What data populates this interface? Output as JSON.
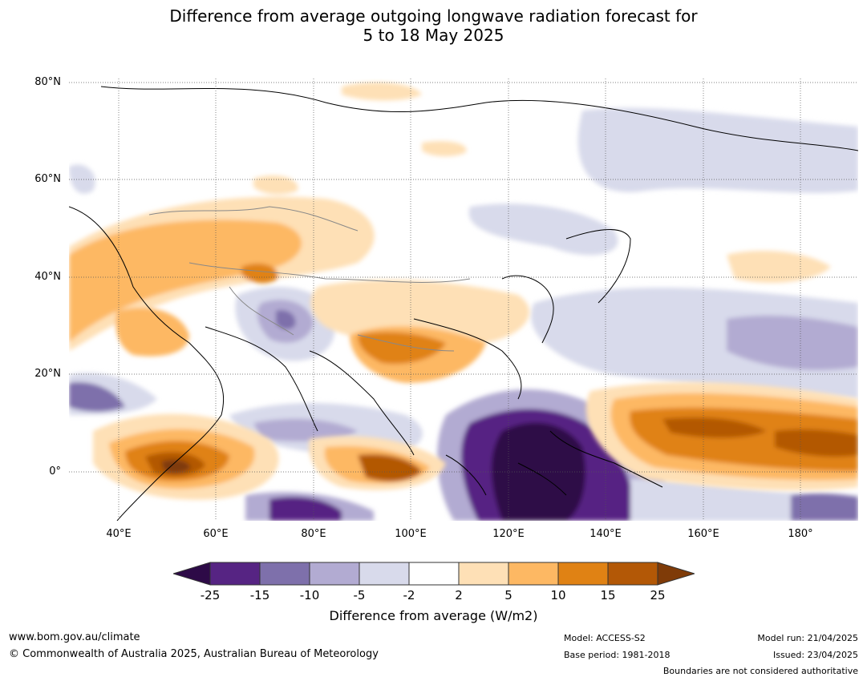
{
  "title_line1": "Difference from average outgoing longwave radiation forecast for",
  "title_line2": "5 to 18 May 2025",
  "lat_labels": [
    "80°N",
    "60°N",
    "40°N",
    "20°N",
    "0°"
  ],
  "lon_labels": [
    "40°E",
    "60°E",
    "80°E",
    "100°E",
    "120°E",
    "140°E",
    "160°E",
    "180°"
  ],
  "colorbar": {
    "ticks": [
      "-25",
      "-15",
      "-10",
      "-5",
      "-2",
      "2",
      "5",
      "10",
      "15",
      "25"
    ],
    "colors": [
      "#2d0a47",
      "#562483",
      "#7e70ab",
      "#b2abd2",
      "#d8daeb",
      "#ffffff",
      "#fee0b6",
      "#fdb863",
      "#e08214",
      "#b35806",
      "#7f3b08"
    ],
    "label": "Difference from average (W/m2)"
  },
  "footer": {
    "url": "www.bom.gov.au/climate",
    "copyright": "© Commonwealth of Australia 2025, Australian Bureau of Meteorology",
    "model": "Model: ACCESS-S2",
    "base_period": "Base period: 1981-2018",
    "model_run": "Model run: 21/04/2025",
    "issued": "Issued: 23/04/2025",
    "disclaimer": "Boundaries are not considered authoritative"
  }
}
